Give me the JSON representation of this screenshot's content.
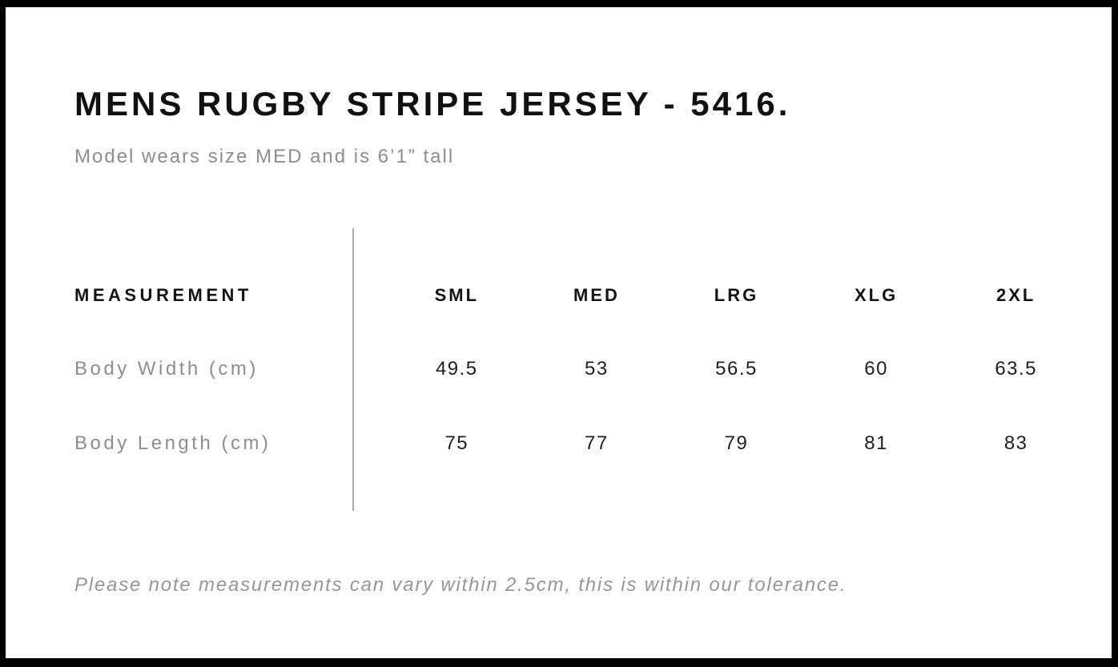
{
  "page": {
    "title": "MENS RUGBY STRIPE JERSEY - 5416.",
    "subtitle": "Model wears size MED and is 6’1” tall",
    "footnote": "Please note measurements can vary within 2.5cm, this is within our tolerance."
  },
  "size_chart": {
    "measurement_header": "MEASUREMENT",
    "size_headers": [
      "SML",
      "MED",
      "LRG",
      "XLG",
      "2XL"
    ],
    "rows": [
      {
        "label": "Body Width (cm)",
        "values": [
          "49.5",
          "53",
          "56.5",
          "60",
          "63.5"
        ]
      },
      {
        "label": "Body Length (cm)",
        "values": [
          "75",
          "77",
          "79",
          "81",
          "83"
        ]
      }
    ]
  },
  "colors": {
    "frame": "#000000",
    "background": "#ffffff",
    "heading_text": "#111111",
    "muted_text": "#8d8d8d",
    "value_text": "#1e1e1e",
    "divider": "#aaaaaa"
  }
}
